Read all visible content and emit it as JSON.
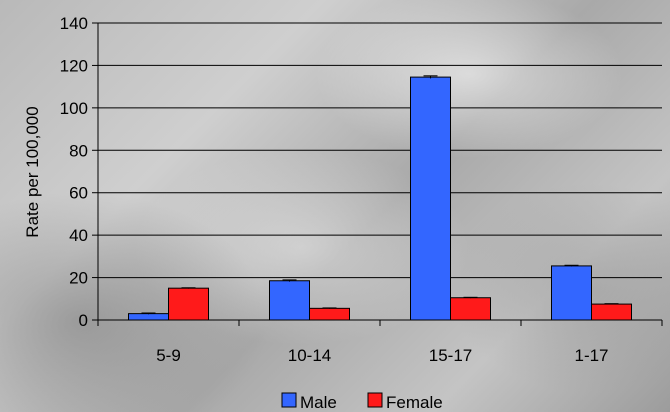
{
  "chart_data": {
    "type": "bar",
    "ylabel": "Rate per 100,000",
    "xlabel": "",
    "categories": [
      "5-9",
      "10-14",
      "15-17",
      "1-17"
    ],
    "series": [
      {
        "name": "Male",
        "values": [
          3,
          18.5,
          114.5,
          25.5
        ],
        "error": [
          0.3,
          0.4,
          0.6,
          0.3
        ]
      },
      {
        "name": "Female",
        "values": [
          15,
          5.5,
          10.5,
          7.5
        ],
        "error": [
          0.2,
          0.2,
          0.2,
          0.2
        ]
      }
    ],
    "ylim": [
      0,
      140
    ],
    "yticks": [
      0,
      20,
      40,
      60,
      80,
      100,
      120,
      140
    ],
    "grid": true,
    "legend_position": "bottom",
    "colors": {
      "Male": "#3366ff",
      "Female": "#ff1a1a"
    }
  }
}
